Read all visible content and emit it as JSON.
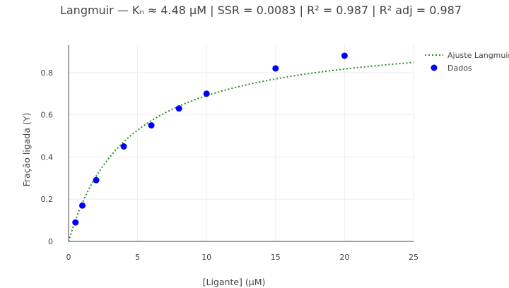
{
  "chart_data": {
    "type": "scatter",
    "title": "Langmuir — Kₙ ≈ 4.48 μM | SSR = 0.0083 | R² = 0.987 | R² adj = 0.987",
    "xlabel": "[Ligante] (μM)",
    "ylabel": "Fração ligada (Y)",
    "xlim": [
      0,
      25
    ],
    "ylim": [
      0,
      0.93
    ],
    "x_ticks": [
      0,
      5,
      10,
      15,
      20,
      25
    ],
    "y_ticks": [
      0,
      0.2,
      0.4,
      0.6,
      0.8
    ],
    "x_tick_labels": [
      "0",
      "5",
      "10",
      "15",
      "20",
      "25"
    ],
    "y_tick_labels": [
      "0",
      "0.2",
      "0.4",
      "0.6",
      "0.8"
    ],
    "grid": true,
    "legend_position": "top-right",
    "series": [
      {
        "name": "Ajuste Langmuir",
        "kind": "line",
        "dash": "dotted",
        "color": "#228B22",
        "model": "langmuir",
        "kd": 4.48,
        "x_range": [
          0,
          25
        ]
      },
      {
        "name": "Dados",
        "kind": "markers",
        "color": "#0000FF",
        "x": [
          0.5,
          1,
          2,
          4,
          6,
          8,
          10,
          15,
          20
        ],
        "y": [
          0.09,
          0.17,
          0.29,
          0.45,
          0.55,
          0.63,
          0.7,
          0.82,
          0.88
        ]
      }
    ]
  }
}
